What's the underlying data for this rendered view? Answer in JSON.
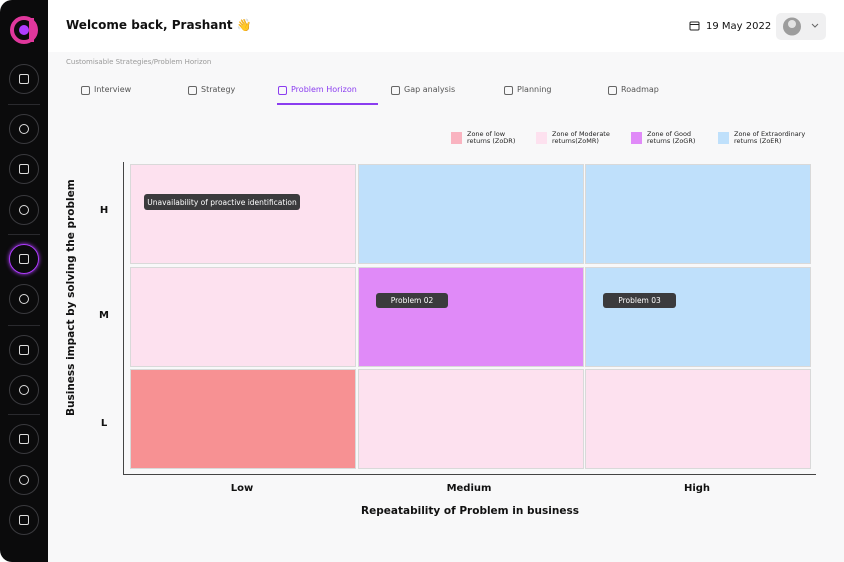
{
  "header": {
    "welcome": "Welcome back, Prashant 👋",
    "date": "19 May 2022"
  },
  "breadcrumb": "Customisable Strategies/Problem Horizon",
  "tabs": [
    "Interview",
    "Strategy",
    "Problem Horizon",
    "Gap analysis",
    "Planning",
    "Roadmap"
  ],
  "active_tab": "Problem Horizon",
  "legend": [
    {
      "label": "Zone of low returns (ZoDR)",
      "color": "#f9b3c0"
    },
    {
      "label": "Zone of Moderate returns(ZoMR)",
      "color": "#fde1ef"
    },
    {
      "label": "Zone of Good returns (ZoGR)",
      "color": "#e08af8"
    },
    {
      "label": "Zone of Extraordinary returns (ZoER)",
      "color": "#bfe0fb"
    }
  ],
  "matrix": {
    "y_title": "Business impact by solving the problem",
    "x_title": "Repeatability of Problem in business",
    "rows": [
      "H",
      "M",
      "L"
    ],
    "columns": [
      "Low",
      "Medium",
      "High"
    ],
    "cells": [
      [
        {
          "color": "#fde1ef",
          "item": "Unavailability of proactive identification"
        },
        {
          "color": "#bfe0fb"
        },
        {
          "color": "#bfe0fb"
        }
      ],
      [
        {
          "color": "#fde1ef"
        },
        {
          "color": "#e08af8",
          "item": "Problem 02"
        },
        {
          "color": "#bfe0fb",
          "item": "Problem 03"
        }
      ],
      [
        {
          "color": "#f79193"
        },
        {
          "color": "#fde1ef"
        },
        {
          "color": "#fde1ef"
        }
      ]
    ]
  }
}
